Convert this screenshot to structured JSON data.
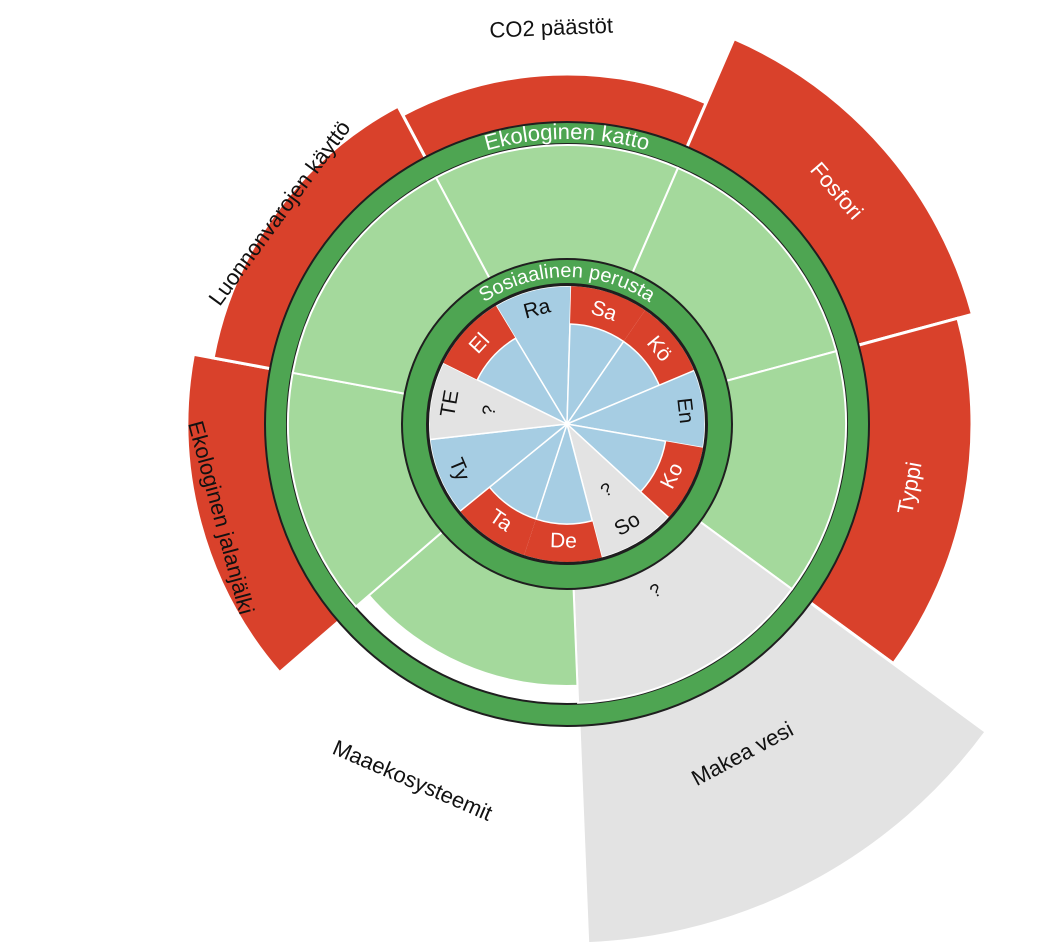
{
  "colors": {
    "overshoot": "#d9412b",
    "safe": "#a4d99c",
    "boundary_ring": "#4ea552",
    "unknown": "#e3e3e3",
    "social_ok": "#a6cde3",
    "outline": "#1f1f1f",
    "ring_text": "#ffffff",
    "dark_text": "#111111"
  },
  "ring_labels": {
    "ecological_ceiling": "Ekologinen katto",
    "social_foundation": "Sosiaalinen perusta"
  },
  "ecological": [
    {
      "label": "CO2 päästöt",
      "status": "overshoot",
      "label_color": "dark",
      "outer_mark": "?"
    },
    {
      "label": "Fosfori",
      "status": "overshoot",
      "label_color": "light"
    },
    {
      "label": "Typpi",
      "status": "overshoot",
      "label_color": "light"
    },
    {
      "label": "Makea vesi",
      "status": "unknown",
      "label_color": "dark",
      "mark": "?"
    },
    {
      "label": "Maaekosysteemit",
      "status": "within",
      "label_color": "dark"
    },
    {
      "label": "Ekologinen jalanjälki",
      "status": "overshoot",
      "label_color": "dark"
    },
    {
      "label": "Luonnonvarojen käyttö",
      "status": "overshoot",
      "label_color": "dark"
    }
  ],
  "social": [
    {
      "label": "Ra",
      "status": "ok"
    },
    {
      "label": "Sa",
      "status": "shortfall"
    },
    {
      "label": "Kö",
      "status": "shortfall"
    },
    {
      "label": "En",
      "status": "ok"
    },
    {
      "label": "Ko",
      "status": "shortfall"
    },
    {
      "label": "So",
      "status": "unknown",
      "mark": "?"
    },
    {
      "label": "De",
      "status": "shortfall"
    },
    {
      "label": "Ta",
      "status": "shortfall"
    },
    {
      "label": "Ty",
      "status": "ok"
    },
    {
      "label": "TE",
      "status": "unknown",
      "mark": "?"
    },
    {
      "label": "El",
      "status": "shortfall"
    }
  ]
}
